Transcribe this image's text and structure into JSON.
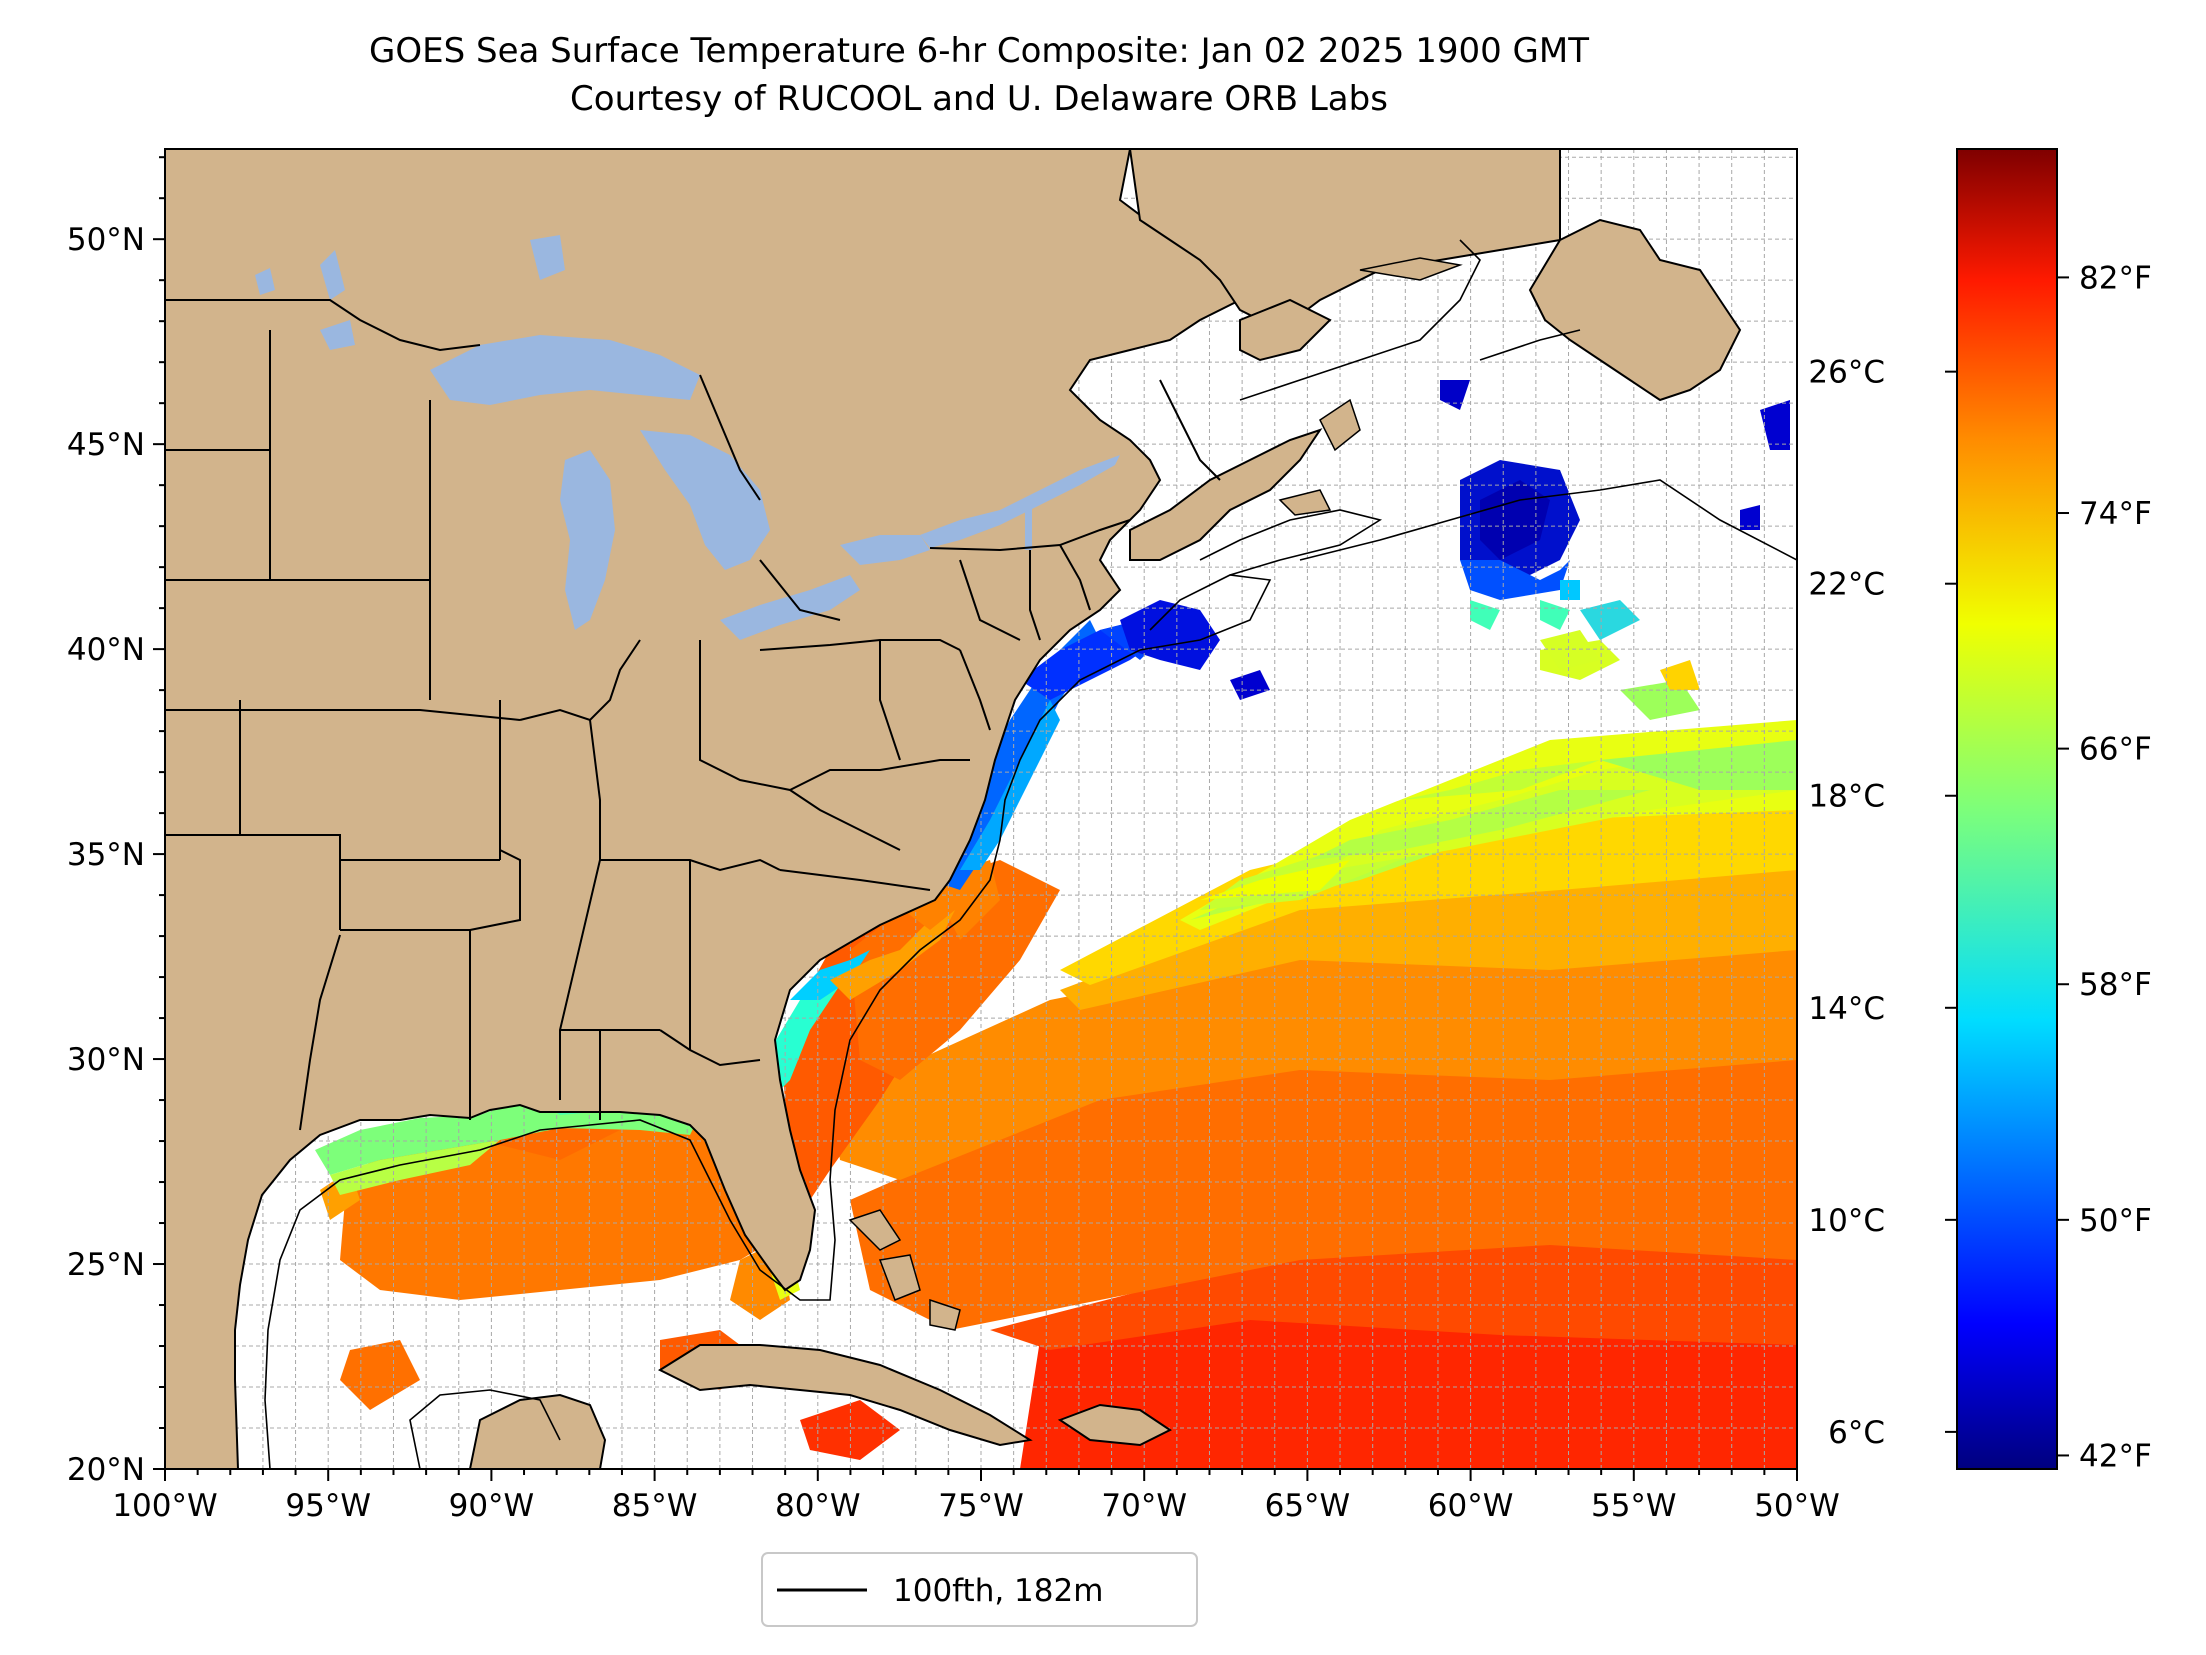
{
  "title": {
    "line1": "GOES Sea Surface Temperature 6-hr Composite: Jan 02 2025 1900 GMT",
    "line2": "Courtesy of RUCOOL and U. Delaware ORB Labs"
  },
  "map": {
    "lon_range": [
      -100,
      -50
    ],
    "lat_range": [
      20,
      52.2
    ],
    "lat_ticks": [
      {
        "value": 50,
        "label": "50°N"
      },
      {
        "value": 45,
        "label": "45°N"
      },
      {
        "value": 40,
        "label": "40°N"
      },
      {
        "value": 35,
        "label": "35°N"
      },
      {
        "value": 30,
        "label": "30°N"
      },
      {
        "value": 25,
        "label": "25°N"
      },
      {
        "value": 20,
        "label": "20°N"
      }
    ],
    "lon_ticks": [
      {
        "value": -100,
        "label": "100°W"
      },
      {
        "value": -95,
        "label": "95°W"
      },
      {
        "value": -90,
        "label": "90°W"
      },
      {
        "value": -85,
        "label": "85°W"
      },
      {
        "value": -80,
        "label": "80°W"
      },
      {
        "value": -75,
        "label": "75°W"
      },
      {
        "value": -70,
        "label": "70°W"
      },
      {
        "value": -65,
        "label": "65°W"
      },
      {
        "value": -60,
        "label": "60°W"
      },
      {
        "value": -55,
        "label": "55°W"
      },
      {
        "value": -50,
        "label": "50°W"
      }
    ],
    "grid": true,
    "land_color": "#d2b48c",
    "lake_color": "#9ab7e0",
    "ocean_color": "#ffffff"
  },
  "legend": {
    "label": "100fth, 182m",
    "placement": "bottom-center"
  },
  "colorbar": {
    "range_c": [
      5.3,
      30.2
    ],
    "celsius_ticks": [
      {
        "value": 6,
        "label": "6°C"
      },
      {
        "value": 10,
        "label": "10°C"
      },
      {
        "value": 14,
        "label": "14°C"
      },
      {
        "value": 18,
        "label": "18°C"
      },
      {
        "value": 22,
        "label": "22°C"
      },
      {
        "value": 26,
        "label": "26°C"
      }
    ],
    "fahrenheit_ticks": [
      {
        "value": 42,
        "label": "42°F"
      },
      {
        "value": 50,
        "label": "50°F"
      },
      {
        "value": 58,
        "label": "58°F"
      },
      {
        "value": 66,
        "label": "66°F"
      },
      {
        "value": 74,
        "label": "74°F"
      },
      {
        "value": 82,
        "label": "82°F"
      }
    ],
    "colormap": "jet"
  }
}
